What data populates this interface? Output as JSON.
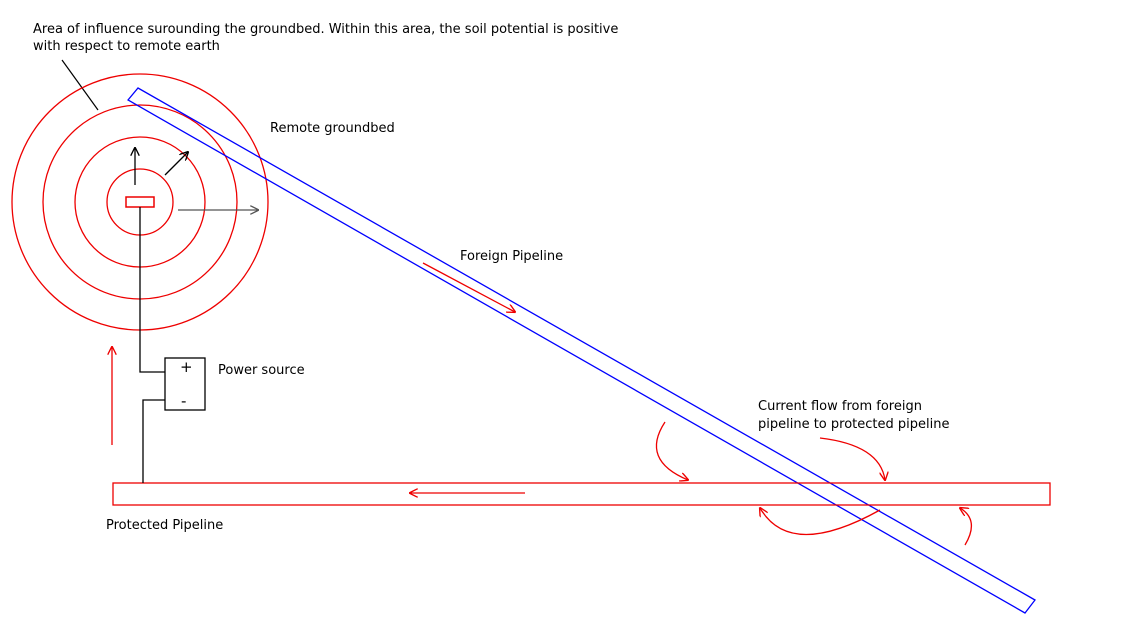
{
  "annotation": {
    "lines": [
      "Area of influence surounding the groundbed. Within this area, the soil potential is positive",
      "with respect to remote earth"
    ]
  },
  "groundbed": {
    "label": "Remote groundbed"
  },
  "foreign_pipeline": {
    "label": "Foreign Pipeline"
  },
  "power_source": {
    "label": "Power source",
    "positive": "+",
    "negative": "-"
  },
  "current_flow": {
    "lines": [
      "Current flow from foreign",
      "pipeline to protected pipeline"
    ]
  },
  "protected_pipeline": {
    "label": "Protected Pipeline"
  }
}
